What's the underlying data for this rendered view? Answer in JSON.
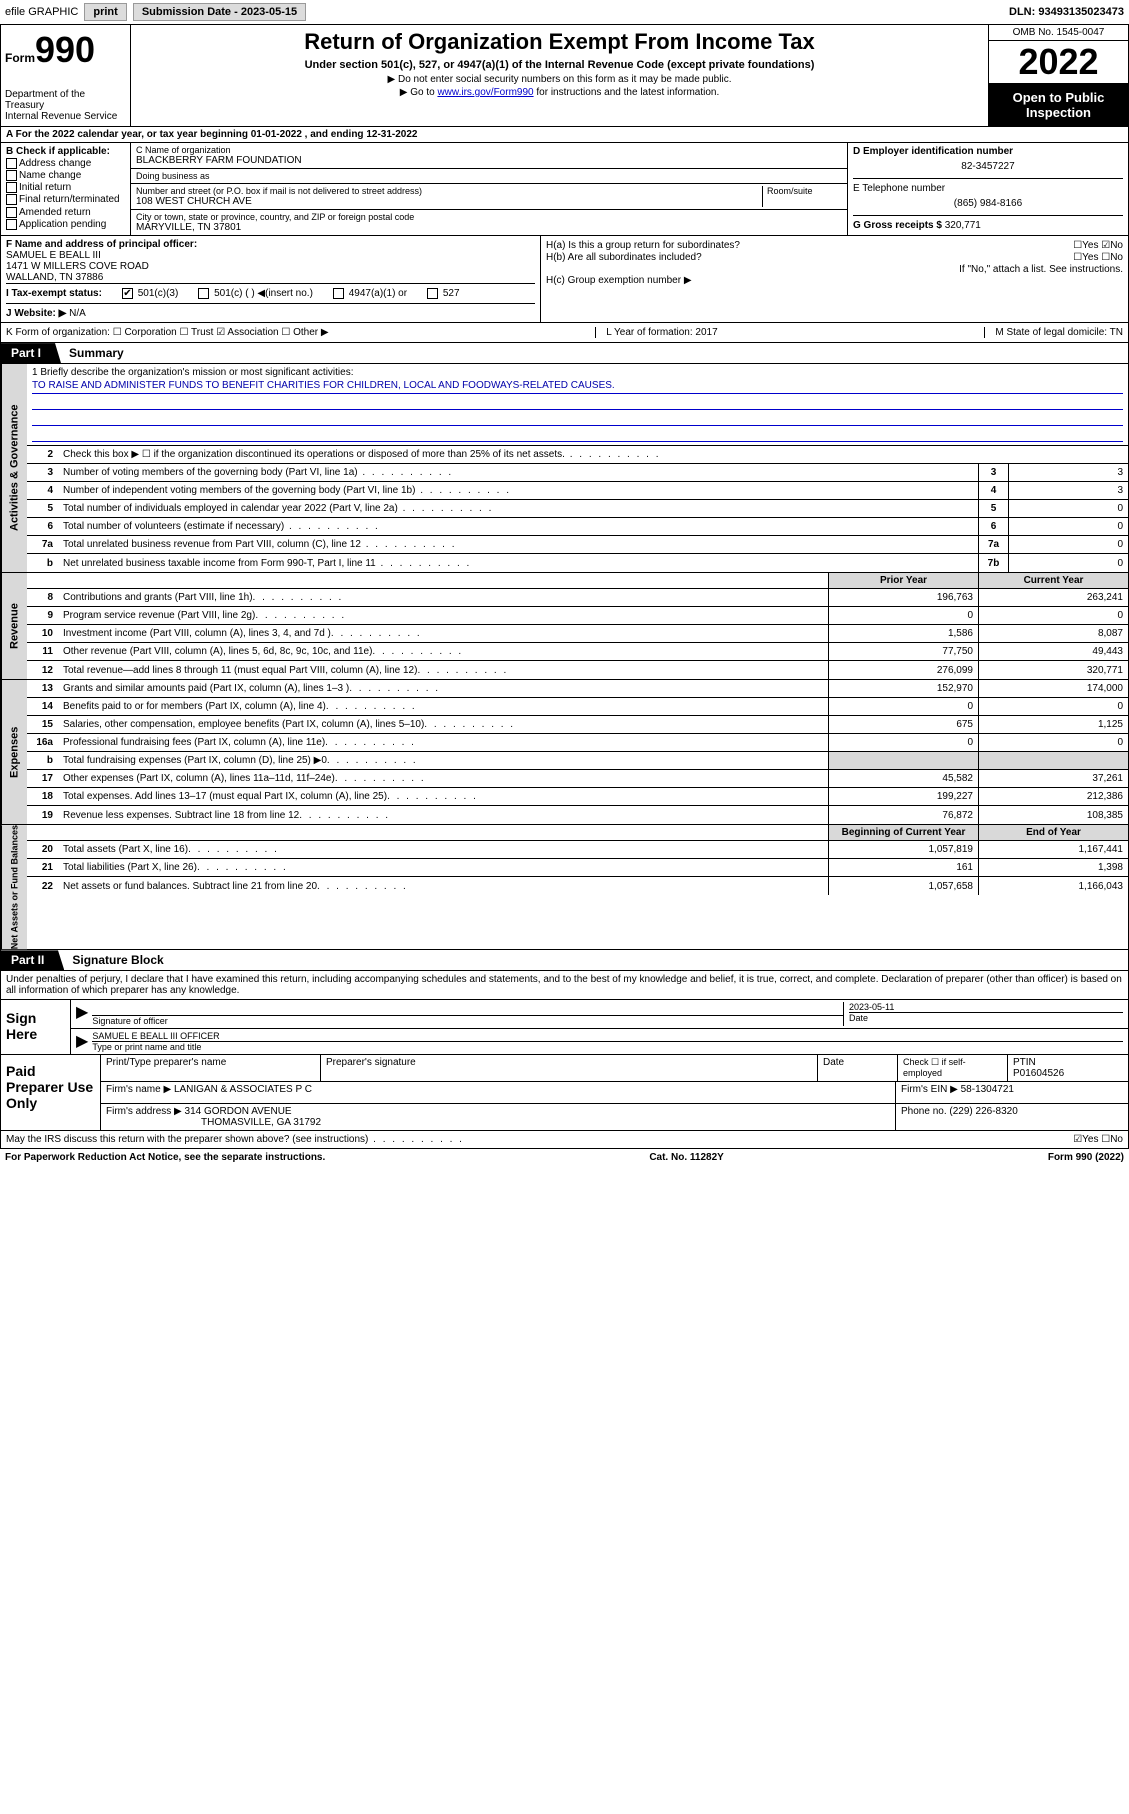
{
  "topbar": {
    "efile": "efile GRAPHIC",
    "print": "print",
    "sub_label": "Submission Date - 2023-05-15",
    "dln": "DLN: 93493135023473"
  },
  "header": {
    "form_word": "Form",
    "form_num": "990",
    "dept": "Department of the Treasury",
    "irs": "Internal Revenue Service",
    "title": "Return of Organization Exempt From Income Tax",
    "subtitle": "Under section 501(c), 527, or 4947(a)(1) of the Internal Revenue Code (except private foundations)",
    "note1": "▶ Do not enter social security numbers on this form as it may be made public.",
    "note2_pre": "▶ Go to ",
    "note2_link": "www.irs.gov/Form990",
    "note2_post": " for instructions and the latest information.",
    "omb": "OMB No. 1545-0047",
    "year": "2022",
    "open": "Open to Public Inspection"
  },
  "row_a": "A   For the 2022 calendar year, or tax year beginning 01-01-2022    , and ending 12-31-2022",
  "col_b": {
    "hdr": "B Check if applicable:",
    "opts": [
      "Address change",
      "Name change",
      "Initial return",
      "Final return/terminated",
      "Amended return",
      "Application pending"
    ]
  },
  "col_c": {
    "name_lbl": "C Name of organization",
    "name": "BLACKBERRY FARM FOUNDATION",
    "dba_lbl": "Doing business as",
    "dba": "",
    "addr_lbl": "Number and street (or P.O. box if mail is not delivered to street address)",
    "room_lbl": "Room/suite",
    "addr": "108 WEST CHURCH AVE",
    "city_lbl": "City or town, state or province, country, and ZIP or foreign postal code",
    "city": "MARYVILLE, TN  37801"
  },
  "col_d": {
    "ein_lbl": "D Employer identification number",
    "ein": "82-3457227",
    "tel_lbl": "E Telephone number",
    "tel": "(865) 984-8166",
    "gross_lbl": "G Gross receipts $",
    "gross": "320,771"
  },
  "col_f": {
    "lbl": "F  Name and address of principal officer:",
    "name": "SAMUEL E BEALL III",
    "addr1": "1471 W MILLERS COVE ROAD",
    "addr2": "WALLAND, TN  37886"
  },
  "col_h": {
    "ha": "H(a)  Is this a group return for subordinates?",
    "ha_ans": "☐Yes ☑No",
    "hb": "H(b)  Are all subordinates included?",
    "hb_ans": "☐Yes ☐No",
    "hb_note": "If \"No,\" attach a list. See instructions.",
    "hc": "H(c)  Group exemption number ▶"
  },
  "row_i": {
    "tax_lbl": "I    Tax-exempt status:",
    "c3": "501(c)(3)",
    "c": "501(c) (  ) ◀(insert no.)",
    "a1": "4947(a)(1) or",
    "527": "527"
  },
  "row_j": {
    "lbl": "J    Website: ▶",
    "val": "N/A"
  },
  "row_k": {
    "left": "K Form of organization:  ☐ Corporation  ☐ Trust  ☑ Association  ☐ Other ▶",
    "mid": "L Year of formation: 2017",
    "right": "M State of legal domicile: TN"
  },
  "part1": {
    "tab": "Part I",
    "title": "Summary"
  },
  "mission": {
    "q": "1   Briefly describe the organization's mission or most significant activities:",
    "a": "TO RAISE AND ADMINISTER FUNDS TO BENEFIT CHARITIES FOR CHILDREN, LOCAL AND FOODWAYS-RELATED CAUSES."
  },
  "gov_lines": [
    {
      "n": "2",
      "t": "Check this box ▶ ☐  if the organization discontinued its operations or disposed of more than 25% of its net assets.",
      "box": "",
      "val": ""
    },
    {
      "n": "3",
      "t": "Number of voting members of the governing body (Part VI, line 1a)",
      "box": "3",
      "val": "3"
    },
    {
      "n": "4",
      "t": "Number of independent voting members of the governing body (Part VI, line 1b)",
      "box": "4",
      "val": "3"
    },
    {
      "n": "5",
      "t": "Total number of individuals employed in calendar year 2022 (Part V, line 2a)",
      "box": "5",
      "val": "0"
    },
    {
      "n": "6",
      "t": "Total number of volunteers (estimate if necessary)",
      "box": "6",
      "val": "0"
    },
    {
      "n": "7a",
      "t": "Total unrelated business revenue from Part VIII, column (C), line 12",
      "box": "7a",
      "val": "0"
    },
    {
      "n": "b",
      "t": "Net unrelated business taxable income from Form 990-T, Part I, line 11",
      "box": "7b",
      "val": "0"
    }
  ],
  "fin_hdr": {
    "c1": "Prior Year",
    "c2": "Current Year"
  },
  "revenue": [
    {
      "n": "8",
      "t": "Contributions and grants (Part VIII, line 1h)",
      "v1": "196,763",
      "v2": "263,241"
    },
    {
      "n": "9",
      "t": "Program service revenue (Part VIII, line 2g)",
      "v1": "0",
      "v2": "0"
    },
    {
      "n": "10",
      "t": "Investment income (Part VIII, column (A), lines 3, 4, and 7d )",
      "v1": "1,586",
      "v2": "8,087"
    },
    {
      "n": "11",
      "t": "Other revenue (Part VIII, column (A), lines 5, 6d, 8c, 9c, 10c, and 11e)",
      "v1": "77,750",
      "v2": "49,443"
    },
    {
      "n": "12",
      "t": "Total revenue—add lines 8 through 11 (must equal Part VIII, column (A), line 12)",
      "v1": "276,099",
      "v2": "320,771"
    }
  ],
  "expenses": [
    {
      "n": "13",
      "t": "Grants and similar amounts paid (Part IX, column (A), lines 1–3 )",
      "v1": "152,970",
      "v2": "174,000"
    },
    {
      "n": "14",
      "t": "Benefits paid to or for members (Part IX, column (A), line 4)",
      "v1": "0",
      "v2": "0"
    },
    {
      "n": "15",
      "t": "Salaries, other compensation, employee benefits (Part IX, column (A), lines 5–10)",
      "v1": "675",
      "v2": "1,125"
    },
    {
      "n": "16a",
      "t": "Professional fundraising fees (Part IX, column (A), line 11e)",
      "v1": "0",
      "v2": "0"
    },
    {
      "n": "b",
      "t": "Total fundraising expenses (Part IX, column (D), line 25) ▶0",
      "v1": "",
      "v2": ""
    },
    {
      "n": "17",
      "t": "Other expenses (Part IX, column (A), lines 11a–11d, 11f–24e)",
      "v1": "45,582",
      "v2": "37,261"
    },
    {
      "n": "18",
      "t": "Total expenses. Add lines 13–17 (must equal Part IX, column (A), line 25)",
      "v1": "199,227",
      "v2": "212,386"
    },
    {
      "n": "19",
      "t": "Revenue less expenses. Subtract line 18 from line 12",
      "v1": "76,872",
      "v2": "108,385"
    }
  ],
  "net_hdr": {
    "c1": "Beginning of Current Year",
    "c2": "End of Year"
  },
  "netassets": [
    {
      "n": "20",
      "t": "Total assets (Part X, line 16)",
      "v1": "1,057,819",
      "v2": "1,167,441"
    },
    {
      "n": "21",
      "t": "Total liabilities (Part X, line 26)",
      "v1": "161",
      "v2": "1,398"
    },
    {
      "n": "22",
      "t": "Net assets or fund balances. Subtract line 21 from line 20",
      "v1": "1,057,658",
      "v2": "1,166,043"
    }
  ],
  "part2": {
    "tab": "Part II",
    "title": "Signature Block"
  },
  "penalty": "Under penalties of perjury, I declare that I have examined this return, including accompanying schedules and statements, and to the best of my knowledge and belief, it is true, correct, and complete. Declaration of preparer (other than officer) is based on all information of which preparer has any knowledge.",
  "sign": {
    "left": "Sign Here",
    "sig_lbl": "Signature of officer",
    "date": "2023-05-11",
    "date_lbl": "Date",
    "name": "SAMUEL E BEALL III OFFICER",
    "name_lbl": "Type or print name and title"
  },
  "prep": {
    "left": "Paid Preparer Use Only",
    "h1": "Print/Type preparer's name",
    "h2": "Preparer's signature",
    "h3": "Date",
    "h4_a": "Check ☐ if self-employed",
    "h4_b": "PTIN",
    "ptin": "P01604526",
    "firm_lbl": "Firm's name    ▶",
    "firm": "LANIGAN & ASSOCIATES P C",
    "ein_lbl": "Firm's EIN ▶",
    "ein": "58-1304721",
    "addr_lbl": "Firm's address ▶",
    "addr1": "314 GORDON AVENUE",
    "addr2": "THOMASVILLE, GA  31792",
    "ph_lbl": "Phone no.",
    "ph": "(229) 226-8320"
  },
  "footer": {
    "q": "May the IRS discuss this return with the preparer shown above? (see instructions)",
    "ans": "☑Yes  ☐No"
  },
  "footer2": {
    "l": "For Paperwork Reduction Act Notice, see the separate instructions.",
    "c": "Cat. No. 11282Y",
    "r": "Form 990 (2022)"
  },
  "vtabs": {
    "gov": "Activities & Governance",
    "rev": "Revenue",
    "exp": "Expenses",
    "net": "Net Assets or Fund Balances"
  }
}
